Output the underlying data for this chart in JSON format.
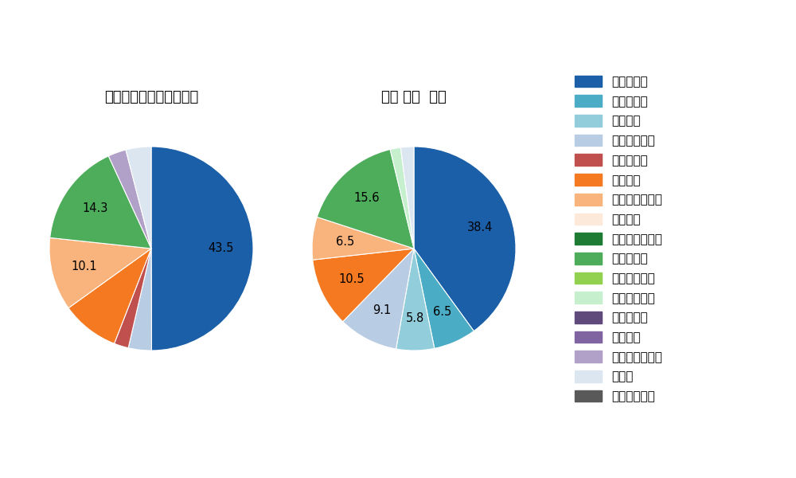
{
  "left_title": "セ・リーグ全プレイヤー",
  "right_title": "関根 大気  選手",
  "pitch_types": [
    "ストレート",
    "ツーシーム",
    "シュート",
    "カットボール",
    "スプリット",
    "フォーク",
    "チェンジアップ",
    "シンカー",
    "高速スライダー",
    "スライダー",
    "縦スライダー",
    "パワーカーブ",
    "スクリュー",
    "ナックル",
    "ナックルカーブ",
    "カーブ",
    "スローカーブ"
  ],
  "colors": [
    "#1a5fa8",
    "#4bacc6",
    "#92cddc",
    "#b8cce4",
    "#c0504d",
    "#f47920",
    "#f9b37c",
    "#fde9d9",
    "#1e7b34",
    "#4ead5b",
    "#92d050",
    "#c6efce",
    "#604a7b",
    "#8064a2",
    "#b1a0c7",
    "#dce6f1",
    "#595959"
  ],
  "left_values": [
    43.5,
    0,
    0,
    3.2,
    2.0,
    8.0,
    10.1,
    0,
    0,
    14.3,
    0,
    0,
    0,
    0,
    2.5,
    3.5,
    0
  ],
  "left_show": [
    true,
    false,
    false,
    false,
    false,
    false,
    true,
    false,
    false,
    true,
    false,
    false,
    false,
    false,
    false,
    false,
    false
  ],
  "right_values": [
    38.4,
    6.5,
    5.8,
    9.1,
    0,
    10.5,
    6.5,
    0,
    0,
    15.6,
    0,
    1.6,
    0,
    0,
    0,
    2.0,
    0
  ],
  "right_show": [
    true,
    true,
    true,
    true,
    false,
    true,
    true,
    false,
    false,
    true,
    false,
    false,
    false,
    false,
    false,
    false,
    false
  ],
  "background_color": "#ffffff",
  "text_color": "#000000",
  "title_fontsize": 13,
  "label_fontsize": 10.5
}
